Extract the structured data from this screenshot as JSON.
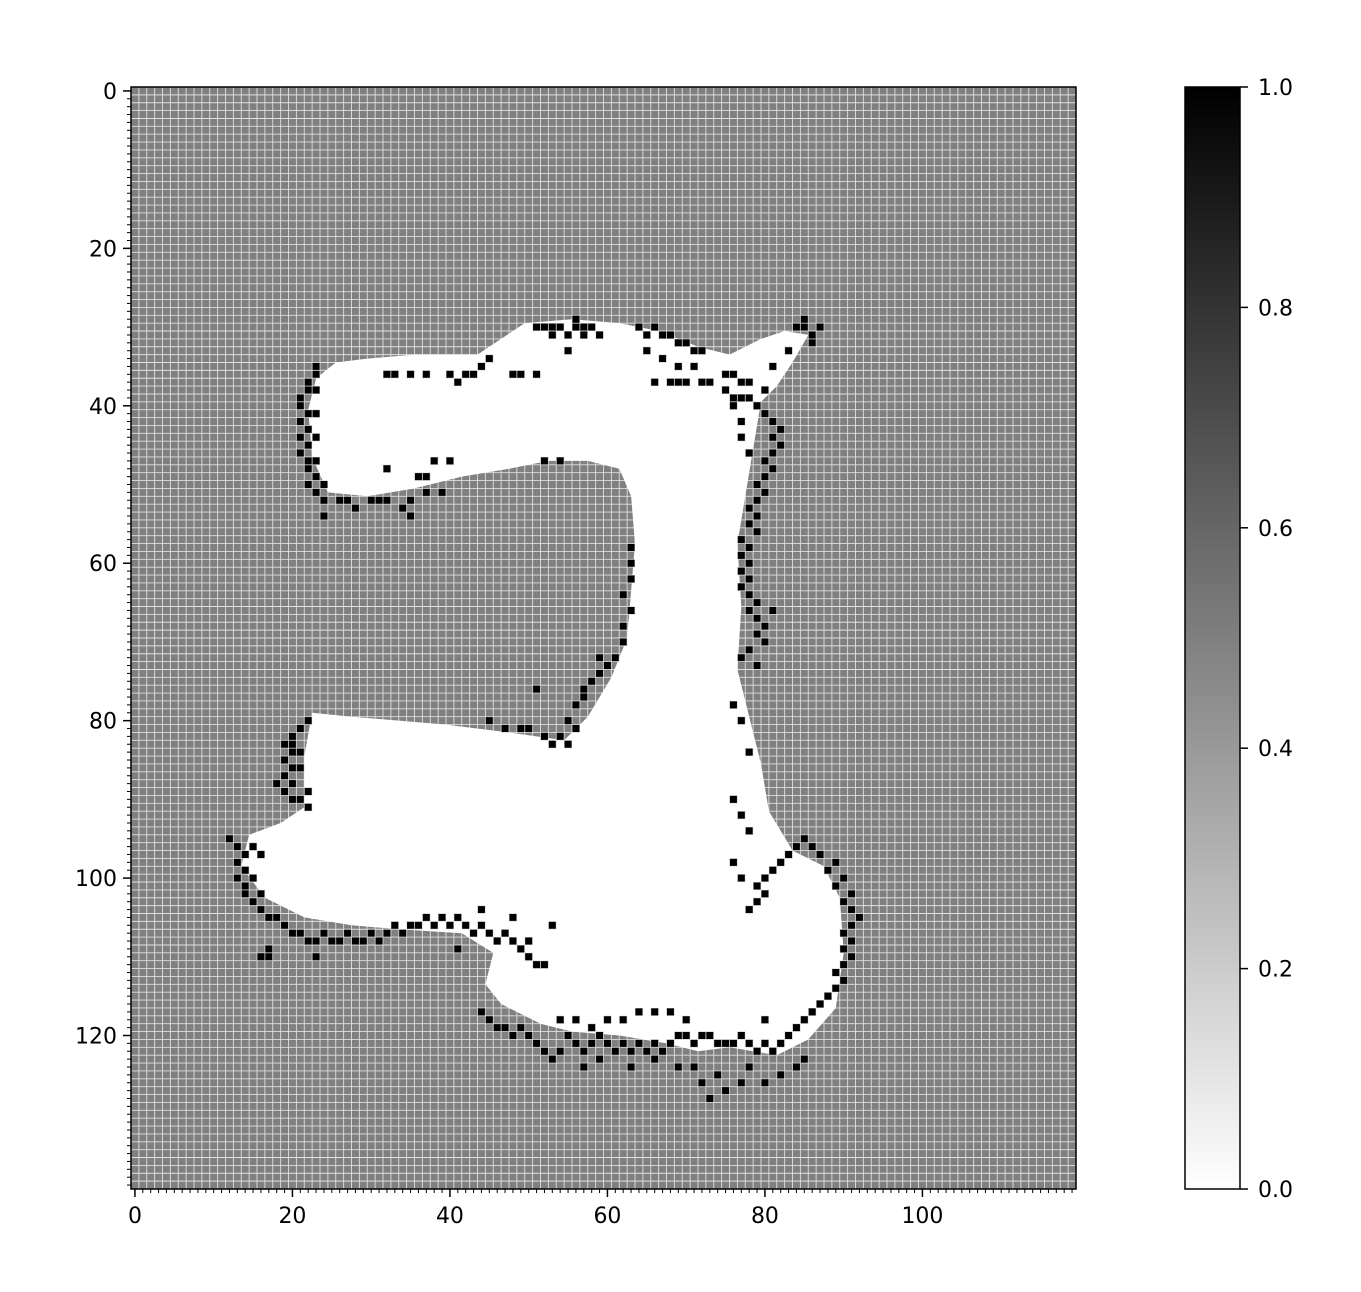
{
  "chart_data": {
    "type": "heatmap",
    "title": "",
    "xlabel": "",
    "ylabel": "",
    "grid_size": [
      120,
      140
    ],
    "xlim": [
      0,
      120
    ],
    "ylim": [
      140,
      0
    ],
    "x_ticks": [
      0,
      20,
      40,
      60,
      80,
      100
    ],
    "y_ticks": [
      0,
      20,
      40,
      60,
      80,
      100,
      120
    ],
    "grid": true,
    "colormap": "gray_r",
    "background_value": 0.5,
    "colorbar": {
      "range": [
        0,
        1
      ],
      "ticks": [
        "0.0",
        "0.2",
        "0.4",
        "0.6",
        "0.8",
        "1.0"
      ],
      "placement": "right"
    },
    "free_region_value": 0.0,
    "free_region_polygon": [
      [
        26,
        35
      ],
      [
        30,
        34.5
      ],
      [
        36,
        34
      ],
      [
        44,
        34
      ],
      [
        50,
        30
      ],
      [
        56,
        29.5
      ],
      [
        62,
        30
      ],
      [
        67,
        31
      ],
      [
        72,
        33
      ],
      [
        76,
        34
      ],
      [
        80,
        32
      ],
      [
        83,
        31
      ],
      [
        86,
        31.5
      ],
      [
        84,
        35
      ],
      [
        82,
        38
      ],
      [
        80,
        40
      ],
      [
        79,
        46
      ],
      [
        78,
        52
      ],
      [
        77,
        58
      ],
      [
        77.5,
        66
      ],
      [
        77,
        74
      ],
      [
        78.5,
        80
      ],
      [
        80,
        86
      ],
      [
        81,
        92
      ],
      [
        84,
        97
      ],
      [
        88,
        99
      ],
      [
        90,
        103
      ],
      [
        90.5,
        110
      ],
      [
        89.5,
        117
      ],
      [
        86,
        121
      ],
      [
        82,
        123
      ],
      [
        76,
        122
      ],
      [
        72,
        122.5
      ],
      [
        68,
        121.5
      ],
      [
        62,
        120.5
      ],
      [
        56,
        120
      ],
      [
        52,
        119
      ],
      [
        47,
        116.5
      ],
      [
        45,
        114
      ],
      [
        46,
        110
      ],
      [
        42,
        107.5
      ],
      [
        34,
        107
      ],
      [
        28,
        106.5
      ],
      [
        22,
        105.5
      ],
      [
        17,
        103
      ],
      [
        14,
        99
      ],
      [
        15,
        95
      ],
      [
        19,
        93.5
      ],
      [
        22,
        91.5
      ],
      [
        22,
        85
      ],
      [
        23,
        79.5
      ],
      [
        28,
        80
      ],
      [
        34,
        80.5
      ],
      [
        40,
        81
      ],
      [
        48,
        82
      ],
      [
        55,
        83
      ],
      [
        58,
        80
      ],
      [
        61,
        75
      ],
      [
        63,
        70
      ],
      [
        63.5,
        64
      ],
      [
        64,
        58
      ],
      [
        63.5,
        52
      ],
      [
        62,
        48.5
      ],
      [
        58,
        47.5
      ],
      [
        53,
        47.5
      ],
      [
        48,
        48.5
      ],
      [
        42,
        49.5
      ],
      [
        36,
        51
      ],
      [
        30,
        52
      ],
      [
        25,
        51.5
      ],
      [
        23,
        47
      ],
      [
        22.5,
        41
      ],
      [
        23.5,
        37
      ]
    ],
    "occupied_value": 1.0,
    "occupied_cells": [
      [
        23,
        36
      ],
      [
        22,
        37
      ],
      [
        22,
        38
      ],
      [
        21,
        39
      ],
      [
        21,
        40
      ],
      [
        22,
        41
      ],
      [
        21,
        42
      ],
      [
        22,
        43
      ],
      [
        21,
        44
      ],
      [
        22,
        45
      ],
      [
        21,
        46
      ],
      [
        22,
        47
      ],
      [
        22,
        48
      ],
      [
        23,
        49
      ],
      [
        22,
        50
      ],
      [
        23,
        51
      ],
      [
        24,
        52
      ],
      [
        26,
        52
      ],
      [
        28,
        53
      ],
      [
        30,
        52
      ],
      [
        32,
        52
      ],
      [
        34,
        53
      ],
      [
        35,
        52
      ],
      [
        37,
        51
      ],
      [
        39,
        51
      ],
      [
        24,
        54
      ],
      [
        35,
        54
      ],
      [
        32,
        48
      ],
      [
        36,
        49
      ],
      [
        37,
        49
      ],
      [
        40,
        47
      ],
      [
        38,
        47
      ],
      [
        23,
        35
      ],
      [
        23,
        38
      ],
      [
        23,
        41
      ],
      [
        23,
        44
      ],
      [
        23,
        47
      ],
      [
        24,
        50
      ],
      [
        27,
        52
      ],
      [
        31,
        52
      ],
      [
        32,
        36
      ],
      [
        33,
        36
      ],
      [
        35,
        36
      ],
      [
        37,
        36
      ],
      [
        40,
        36
      ],
      [
        41,
        37
      ],
      [
        42,
        36
      ],
      [
        43,
        36
      ],
      [
        44,
        35
      ],
      [
        45,
        34
      ],
      [
        48,
        36
      ],
      [
        49,
        36
      ],
      [
        51,
        36
      ],
      [
        51,
        30
      ],
      [
        52,
        30
      ],
      [
        53,
        31
      ],
      [
        54,
        30
      ],
      [
        55,
        31
      ],
      [
        56,
        30
      ],
      [
        57,
        30
      ],
      [
        58,
        30
      ],
      [
        56,
        29
      ],
      [
        57,
        31
      ],
      [
        53,
        30
      ],
      [
        55,
        33
      ],
      [
        52,
        47
      ],
      [
        54,
        47
      ],
      [
        59,
        31
      ],
      [
        64,
        30
      ],
      [
        65,
        31
      ],
      [
        66,
        30
      ],
      [
        67,
        31
      ],
      [
        68,
        31
      ],
      [
        69,
        32
      ],
      [
        70,
        32
      ],
      [
        71,
        33
      ],
      [
        72,
        33
      ],
      [
        65,
        33
      ],
      [
        67,
        34
      ],
      [
        69,
        35
      ],
      [
        71,
        35
      ],
      [
        66,
        37
      ],
      [
        68,
        37
      ],
      [
        69,
        37
      ],
      [
        70,
        37
      ],
      [
        72,
        37
      ],
      [
        73,
        37
      ],
      [
        75,
        36
      ],
      [
        76,
        36
      ],
      [
        77,
        37
      ],
      [
        78,
        37
      ],
      [
        75,
        38
      ],
      [
        76,
        39
      ],
      [
        77,
        39
      ],
      [
        78,
        39
      ],
      [
        76,
        40
      ],
      [
        79,
        40
      ],
      [
        84,
        30
      ],
      [
        85,
        30
      ],
      [
        86,
        31
      ],
      [
        87,
        30
      ],
      [
        85,
        29
      ],
      [
        86,
        32
      ],
      [
        83,
        33
      ],
      [
        81,
        35
      ],
      [
        80,
        38
      ],
      [
        79,
        40
      ],
      [
        80,
        41
      ],
      [
        81,
        42
      ],
      [
        82,
        43
      ],
      [
        81,
        44
      ],
      [
        82,
        45
      ],
      [
        81,
        46
      ],
      [
        80,
        47
      ],
      [
        81,
        48
      ],
      [
        80,
        49
      ],
      [
        79,
        50
      ],
      [
        80,
        51
      ],
      [
        79,
        52
      ],
      [
        78,
        53
      ],
      [
        79,
        54
      ],
      [
        78,
        55
      ],
      [
        79,
        56
      ],
      [
        77,
        57
      ],
      [
        78,
        58
      ],
      [
        77,
        59
      ],
      [
        78,
        60
      ],
      [
        77,
        61
      ],
      [
        78,
        62
      ],
      [
        77,
        63
      ],
      [
        78,
        64
      ],
      [
        79,
        65
      ],
      [
        78,
        66
      ],
      [
        79,
        67
      ],
      [
        80,
        68
      ],
      [
        79,
        69
      ],
      [
        80,
        70
      ],
      [
        78,
        71
      ],
      [
        77,
        72
      ],
      [
        79,
        73
      ],
      [
        81,
        66
      ],
      [
        77,
        42
      ],
      [
        77,
        44
      ],
      [
        78,
        46
      ],
      [
        63,
        58
      ],
      [
        63,
        60
      ],
      [
        63,
        62
      ],
      [
        62,
        64
      ],
      [
        63,
        66
      ],
      [
        62,
        68
      ],
      [
        62,
        70
      ],
      [
        61,
        72
      ],
      [
        60,
        73
      ],
      [
        59,
        74
      ],
      [
        58,
        75
      ],
      [
        57,
        77
      ],
      [
        56,
        78
      ],
      [
        55,
        80
      ],
      [
        56,
        81
      ],
      [
        54,
        82
      ],
      [
        55,
        83
      ],
      [
        53,
        83
      ],
      [
        57,
        76
      ],
      [
        59,
        72
      ],
      [
        51,
        76
      ],
      [
        49,
        81
      ],
      [
        50,
        81
      ],
      [
        47,
        81
      ],
      [
        45,
        80
      ],
      [
        52,
        82
      ],
      [
        22,
        80
      ],
      [
        21,
        81
      ],
      [
        20,
        82
      ],
      [
        19,
        83
      ],
      [
        20,
        84
      ],
      [
        19,
        85
      ],
      [
        20,
        86
      ],
      [
        19,
        87
      ],
      [
        18,
        88
      ],
      [
        20,
        88
      ],
      [
        19,
        89
      ],
      [
        20,
        90
      ],
      [
        21,
        90
      ],
      [
        22,
        91
      ],
      [
        22,
        89
      ],
      [
        21,
        86
      ],
      [
        20,
        83
      ],
      [
        21,
        84
      ],
      [
        13,
        96
      ],
      [
        14,
        97
      ],
      [
        13,
        98
      ],
      [
        14,
        99
      ],
      [
        13,
        100
      ],
      [
        14,
        101
      ],
      [
        14,
        102
      ],
      [
        15,
        103
      ],
      [
        16,
        104
      ],
      [
        17,
        105
      ],
      [
        18,
        105
      ],
      [
        19,
        106
      ],
      [
        20,
        107
      ],
      [
        21,
        107
      ],
      [
        22,
        108
      ],
      [
        23,
        108
      ],
      [
        24,
        107
      ],
      [
        25,
        108
      ],
      [
        26,
        108
      ],
      [
        27,
        107
      ],
      [
        28,
        108
      ],
      [
        29,
        108
      ],
      [
        30,
        107
      ],
      [
        31,
        108
      ],
      [
        32,
        107
      ],
      [
        33,
        106
      ],
      [
        34,
        107
      ],
      [
        35,
        106
      ],
      [
        36,
        106
      ],
      [
        37,
        105
      ],
      [
        38,
        106
      ],
      [
        39,
        105
      ],
      [
        40,
        106
      ],
      [
        41,
        105
      ],
      [
        42,
        106
      ],
      [
        43,
        107
      ],
      [
        44,
        106
      ],
      [
        45,
        107
      ],
      [
        46,
        108
      ],
      [
        47,
        107
      ],
      [
        48,
        108
      ],
      [
        49,
        109
      ],
      [
        50,
        110
      ],
      [
        51,
        111
      ],
      [
        48,
        105
      ],
      [
        17,
        110
      ],
      [
        16,
        110
      ],
      [
        17,
        109
      ],
      [
        23,
        110
      ],
      [
        41,
        109
      ],
      [
        44,
        104
      ],
      [
        50,
        108
      ],
      [
        52,
        111
      ],
      [
        53,
        106
      ],
      [
        15,
        96
      ],
      [
        16,
        97
      ],
      [
        15,
        100
      ],
      [
        16,
        102
      ],
      [
        12,
        95
      ],
      [
        44,
        117
      ],
      [
        45,
        118
      ],
      [
        46,
        119
      ],
      [
        47,
        119
      ],
      [
        48,
        120
      ],
      [
        49,
        119
      ],
      [
        50,
        120
      ],
      [
        51,
        121
      ],
      [
        52,
        122
      ],
      [
        53,
        123
      ],
      [
        54,
        122
      ],
      [
        55,
        120
      ],
      [
        56,
        121
      ],
      [
        57,
        122
      ],
      [
        58,
        121
      ],
      [
        59,
        120
      ],
      [
        60,
        121
      ],
      [
        61,
        122
      ],
      [
        62,
        121
      ],
      [
        63,
        122
      ],
      [
        64,
        121
      ],
      [
        65,
        122
      ],
      [
        66,
        121
      ],
      [
        67,
        122
      ],
      [
        68,
        121
      ],
      [
        69,
        120
      ],
      [
        70,
        120
      ],
      [
        71,
        121
      ],
      [
        72,
        120
      ],
      [
        73,
        120
      ],
      [
        74,
        121
      ],
      [
        75,
        121
      ],
      [
        76,
        121
      ],
      [
        77,
        120
      ],
      [
        78,
        121
      ],
      [
        79,
        122
      ],
      [
        80,
        121
      ],
      [
        81,
        122
      ],
      [
        82,
        121
      ],
      [
        83,
        120
      ],
      [
        84,
        119
      ],
      [
        85,
        118
      ],
      [
        86,
        117
      ],
      [
        87,
        116
      ],
      [
        88,
        115
      ],
      [
        89,
        114
      ],
      [
        90,
        113
      ],
      [
        89,
        112
      ],
      [
        90,
        111
      ],
      [
        91,
        110
      ],
      [
        90,
        109
      ],
      [
        91,
        108
      ],
      [
        90,
        107
      ],
      [
        91,
        106
      ],
      [
        92,
        105
      ],
      [
        91,
        104
      ],
      [
        90,
        103
      ],
      [
        91,
        102
      ],
      [
        89,
        101
      ],
      [
        90,
        100
      ],
      [
        88,
        99
      ],
      [
        89,
        98
      ],
      [
        87,
        97
      ],
      [
        86,
        96
      ],
      [
        85,
        95
      ],
      [
        84,
        96
      ],
      [
        83,
        97
      ],
      [
        82,
        98
      ],
      [
        81,
        99
      ],
      [
        80,
        100
      ],
      [
        79,
        101
      ],
      [
        80,
        102
      ],
      [
        79,
        103
      ],
      [
        78,
        104
      ],
      [
        77,
        100
      ],
      [
        76,
        98
      ],
      [
        78,
        94
      ],
      [
        77,
        92
      ],
      [
        76,
        90
      ],
      [
        78,
        84
      ],
      [
        77,
        80
      ],
      [
        76,
        78
      ],
      [
        54,
        118
      ],
      [
        56,
        118
      ],
      [
        58,
        119
      ],
      [
        60,
        118
      ],
      [
        62,
        118
      ],
      [
        64,
        117
      ],
      [
        66,
        117
      ],
      [
        68,
        117
      ],
      [
        70,
        118
      ],
      [
        72,
        126
      ],
      [
        73,
        128
      ],
      [
        75,
        127
      ],
      [
        77,
        126
      ],
      [
        80,
        126
      ],
      [
        82,
        125
      ],
      [
        84,
        124
      ],
      [
        85,
        123
      ],
      [
        71,
        124
      ],
      [
        57,
        124
      ],
      [
        59,
        123
      ],
      [
        63,
        124
      ],
      [
        66,
        123
      ],
      [
        69,
        124
      ],
      [
        74,
        125
      ],
      [
        78,
        124
      ],
      [
        80,
        118
      ]
    ]
  }
}
